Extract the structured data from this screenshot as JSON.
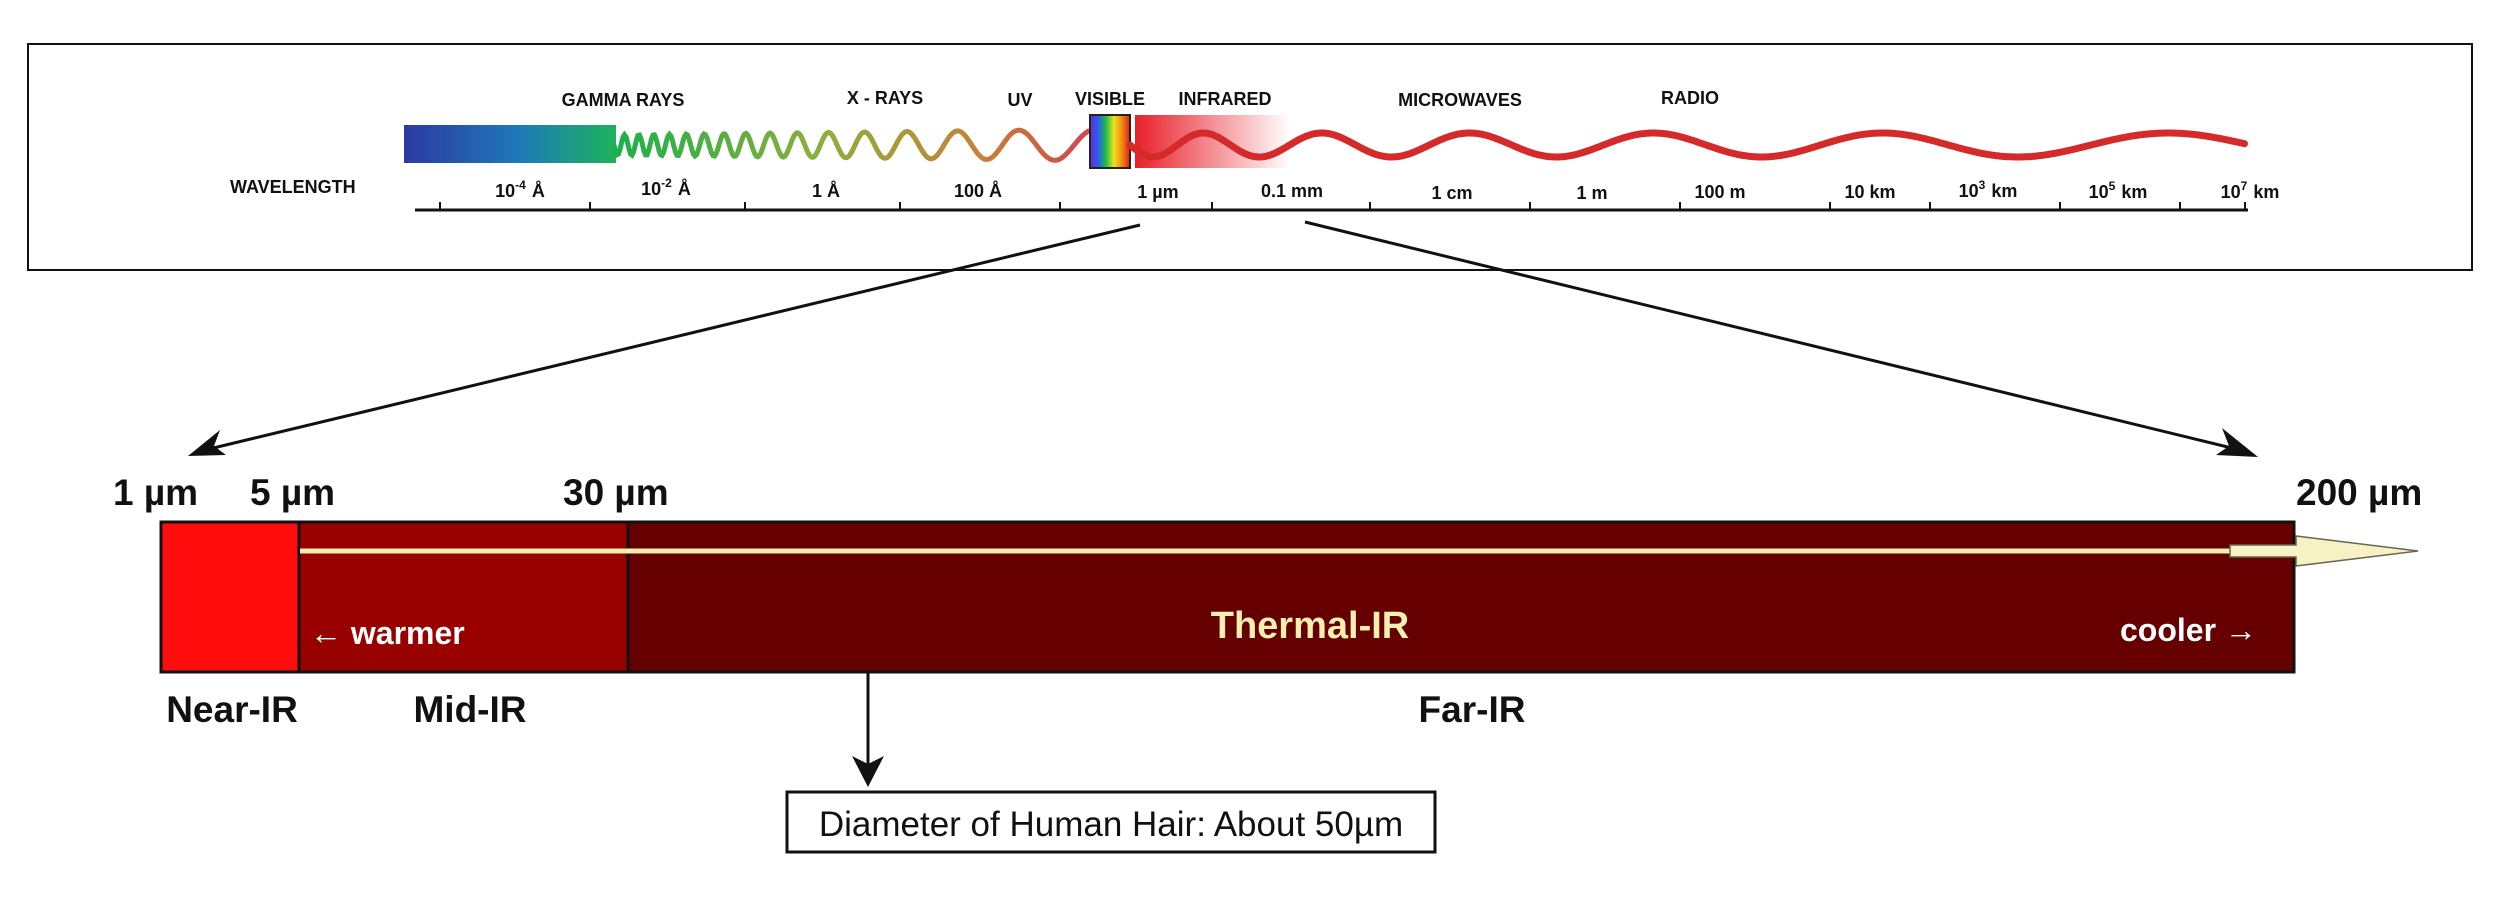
{
  "spectrum": {
    "band_labels": [
      "GAMMA RAYS",
      "X - RAYS",
      "UV",
      "VISIBLE",
      "INFRARED",
      "MICROWAVES",
      "RADIO"
    ],
    "wavelength_label": "WAVELENGTH",
    "ticks": [
      {
        "base": "10",
        "sup": "-4",
        "unit": "Å"
      },
      {
        "base": "10",
        "sup": "-2",
        "unit": "Å"
      },
      {
        "base": "1 Å",
        "sup": "",
        "unit": ""
      },
      {
        "base": "100 Å",
        "sup": "",
        "unit": ""
      },
      {
        "base": "1 µm",
        "sup": "",
        "unit": ""
      },
      {
        "base": "0.1 mm",
        "sup": "",
        "unit": ""
      },
      {
        "base": "1 cm",
        "sup": "",
        "unit": ""
      },
      {
        "base": "1 m",
        "sup": "",
        "unit": ""
      },
      {
        "base": "100 m",
        "sup": "",
        "unit": ""
      },
      {
        "base": "10 km",
        "sup": "",
        "unit": ""
      },
      {
        "base": "10",
        "sup": "3",
        "unit": "km"
      },
      {
        "base": "10",
        "sup": "5",
        "unit": "km"
      },
      {
        "base": "10",
        "sup": "7",
        "unit": "km"
      }
    ]
  },
  "infrared": {
    "boundaries": [
      "1 µm",
      "5 µm",
      "30 µm",
      "200 µm"
    ],
    "regions": [
      "Near-IR",
      "Mid-IR",
      "Far-IR"
    ],
    "thermal_label": "Thermal-IR",
    "warmer_label": "← warmer",
    "cooler_label": "cooler →",
    "hair_note": "Diameter of Human Hair: About 50µm"
  },
  "colors": {
    "near_ir": "#ff0d0d",
    "mid_ir": "#990000",
    "far_ir": "#660000",
    "thermal_text": "#f5f0b0",
    "arrow_fill": "#f7f2c4"
  }
}
